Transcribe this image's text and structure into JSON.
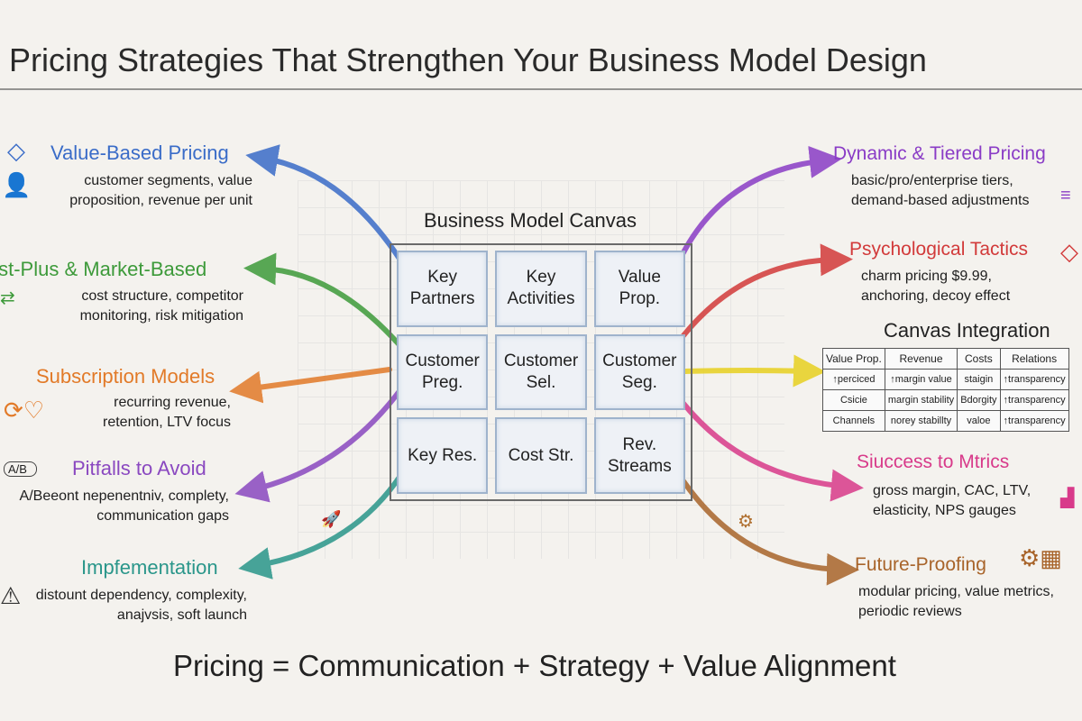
{
  "title": "Pricing Strategies That Strengthen Your Business Model Design",
  "canvas": {
    "title": "Business Model Canvas",
    "cells": [
      "Key Partners",
      "Key Activities",
      "Value Prop.",
      "Customer Preg.",
      "Customer Sel.",
      "Customer Seg.",
      "Key Res.",
      "Cost Str.",
      "Rev. Streams"
    ]
  },
  "left": [
    {
      "heading": "Value-Based Pricing",
      "line1": "customer segments, value",
      "line2": "proposition, revenue per unit",
      "color": "#3a6cc8",
      "icon": "diamond-icon"
    },
    {
      "heading": "Cost-Plus & Market-Based",
      "line1": "cost structure, competitor",
      "line2": "monitoring, risk mitigation",
      "color": "#3d9a3a",
      "icon": "exchange-icon"
    },
    {
      "heading": "Subscription Models",
      "line1": "recurring revenue,",
      "line2": "retention, LTV focus",
      "color": "#e27a28",
      "icon": "cycle-heart-icon"
    },
    {
      "heading": "Pitfalls to Avoid",
      "line1": "A/Beeont nepenentniv, complety,",
      "line2": "communication gaps",
      "color": "#8a48c0",
      "icon": "ab-test-icon",
      "icon_text": "A/B"
    },
    {
      "heading": "Impfementation",
      "line1": "distount dependency, complexity,",
      "line2": "anajvsis, soft launch",
      "color": "#2a968a",
      "icon": "warning-icon"
    }
  ],
  "right": [
    {
      "heading": "Dynamic & Tiered Pricing",
      "line1": "basic/pro/enterprise tiers,",
      "line2": "demand-based adjustments",
      "color": "#8a3cc6",
      "icon": "tiers-icon"
    },
    {
      "heading": "Psychological Tactics",
      "line1": "charm pricing $9.99,",
      "line2": "anchoring, decoy effect",
      "color": "#d23a3a",
      "icon": "tag-icon"
    },
    {
      "heading": "Siuccess to Mtrics",
      "line1": "gross margin, CAC, LTV,",
      "line2": "elasticity, NPS gauges",
      "color": "#d83a8a",
      "icon": "chart-icon"
    },
    {
      "heading": "Future-Proofing",
      "line1": "modular pricing, value metrics,",
      "line2": "periodic reviews",
      "color": "#a8642a",
      "icon": "gear-calendar-icon"
    }
  ],
  "canvas_integration": {
    "title": "Canvas Integration",
    "headers": [
      "Value Prop.",
      "Revenue",
      "Costs",
      "Relations"
    ],
    "rows": [
      [
        "↑perciced",
        "↑margin value",
        "staigin",
        "↑transparency"
      ],
      [
        "Csicie",
        "margin stability",
        "Bdorgity",
        "↑transparency"
      ],
      [
        "Channels",
        "norey stabillty",
        "valoe",
        "↑transparency"
      ]
    ],
    "arrow_color": "#e8d020"
  },
  "formula": "Pricing = Communication + Strategy + Value Alignment"
}
